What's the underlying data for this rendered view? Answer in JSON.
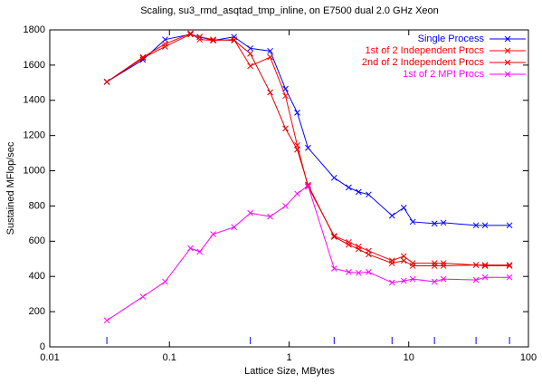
{
  "chart_data": {
    "type": "line",
    "title": "Scaling, su3_rmd_asqtad_tmp_inline, on E7500 dual 2.0 GHz Xeon",
    "xlabel": "Lattice Size, MBytes",
    "ylabel": "Sustained MFlop/sec",
    "xscale": "log",
    "xlim": [
      0.01,
      100
    ],
    "xticks": [
      0.01,
      0.1,
      1,
      10,
      100
    ],
    "ylim": [
      0,
      1800
    ],
    "yticks": [
      0,
      200,
      400,
      600,
      800,
      1000,
      1200,
      1400,
      1600,
      1800
    ],
    "legend": "top-right",
    "x": [
      0.03,
      0.06,
      0.092,
      0.15,
      0.179,
      0.232,
      0.347,
      0.474,
      0.695,
      0.933,
      1.17,
      1.44,
      2.38,
      3.15,
      3.81,
      4.62,
      7.25,
      9.09,
      10.8,
      16.4,
      19.5,
      36.5,
      43.4,
      69.5
    ],
    "series": [
      {
        "name": "Single Process",
        "color": "#0000ff",
        "values": [
          1505,
          1630,
          1745,
          1775,
          1760,
          1740,
          1760,
          1695,
          1680,
          1465,
          1330,
          1130,
          960,
          905,
          880,
          865,
          745,
          790,
          710,
          700,
          705,
          690,
          690,
          690
        ]
      },
      {
        "name": "1st of 2 Independent Procs",
        "color": "#ff0000",
        "values": [
          1505,
          1645,
          1720,
          1780,
          1745,
          1740,
          1745,
          1595,
          1645,
          1425,
          1145,
          910,
          630,
          595,
          570,
          545,
          490,
          515,
          475,
          475,
          475,
          465,
          465,
          465
        ]
      },
      {
        "name": "2nd of 2 Independent Procs",
        "color": "#dd0000",
        "values": [
          1505,
          1640,
          1705,
          1775,
          1760,
          1745,
          1740,
          1665,
          1445,
          1240,
          1120,
          920,
          625,
          580,
          555,
          525,
          475,
          490,
          460,
          460,
          460,
          465,
          460,
          460
        ]
      },
      {
        "name": "1st of 2 MPI Procs",
        "color": "#ff00ff",
        "values": [
          150,
          285,
          370,
          560,
          540,
          640,
          680,
          760,
          740,
          800,
          870,
          915,
          445,
          425,
          420,
          425,
          365,
          375,
          385,
          370,
          385,
          380,
          395,
          395
        ]
      }
    ],
    "marker_x": [
      0.03,
      0.474,
      2.38,
      7.25,
      16.4,
      36.5,
      69.5
    ],
    "marker_color": "#0000ff"
  }
}
